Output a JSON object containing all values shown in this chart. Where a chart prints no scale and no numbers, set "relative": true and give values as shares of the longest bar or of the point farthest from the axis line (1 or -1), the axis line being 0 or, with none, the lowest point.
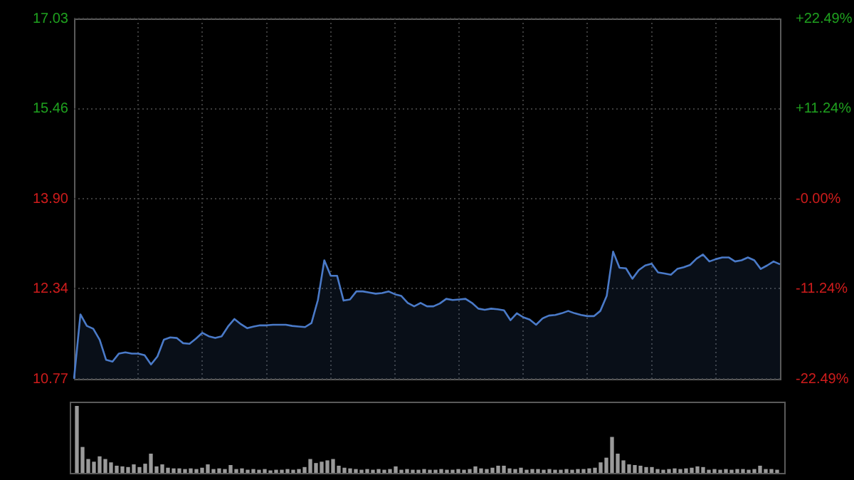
{
  "chart_data": [
    {
      "type": "area",
      "tick_labels": "y",
      "grid": true,
      "legend": false,
      "categories": [
        null,
        null,
        null,
        null,
        null,
        null,
        null,
        null,
        null,
        null,
        null,
        null,
        null,
        null,
        null,
        null,
        null,
        null,
        null,
        null,
        null,
        null,
        null,
        null,
        null,
        null,
        null,
        null,
        null,
        null,
        null,
        null,
        null,
        null,
        null,
        null,
        null,
        null,
        null,
        null,
        null,
        null,
        null,
        null,
        null,
        null,
        null,
        null,
        null,
        null,
        null,
        null,
        null,
        null,
        null,
        null,
        null,
        null,
        null,
        null,
        null,
        null,
        null,
        null,
        null,
        null,
        null,
        null,
        null,
        null,
        null,
        null,
        null,
        null,
        null,
        null,
        null,
        null,
        null,
        null,
        null,
        null,
        null,
        null,
        null,
        null,
        null,
        null,
        null,
        null,
        null,
        null,
        null,
        null,
        null,
        null,
        null,
        null,
        null,
        null,
        null,
        null,
        null,
        null,
        null,
        null,
        null,
        null,
        null,
        null,
        null
      ],
      "ylim": [
        10.77,
        17.03
      ],
      "yticks": [
        10.77,
        12.34,
        {
          "value": 13.9,
          "label": "13.90"
        },
        15.46,
        17.03
      ],
      "y2lim": [
        -22.49,
        22.49
      ],
      "y2ticks": [
        {
          "value": -22.49,
          "label": "-22.49%"
        },
        {
          "value": -11.24,
          "label": "-11.24%"
        },
        {
          "value": 0,
          "label": "-0.00%"
        },
        {
          "value": 11.24,
          "label": "+11.24%"
        },
        {
          "value": 22.49,
          "label": "+22.49%"
        }
      ],
      "series": [
        {
          "color": "#4a7ac8",
          "values": [
            10.77,
            11.89,
            11.69,
            11.64,
            11.45,
            11.1,
            11.07,
            11.21,
            11.23,
            11.21,
            11.21,
            11.18,
            11.02,
            11.16,
            11.45,
            11.49,
            11.48,
            11.39,
            11.38,
            11.47,
            11.57,
            11.51,
            11.48,
            11.51,
            11.68,
            11.81,
            11.72,
            11.65,
            11.68,
            11.7,
            11.7,
            11.71,
            11.71,
            11.71,
            11.69,
            11.68,
            11.67,
            11.74,
            12.14,
            12.83,
            12.56,
            12.56,
            12.13,
            12.15,
            12.29,
            12.29,
            12.27,
            12.25,
            12.26,
            12.29,
            12.24,
            12.21,
            12.09,
            12.03,
            12.09,
            12.03,
            12.03,
            12.08,
            12.16,
            12.14,
            12.15,
            12.16,
            12.09,
            11.99,
            11.97,
            11.99,
            11.98,
            11.96,
            11.79,
            11.91,
            11.84,
            11.8,
            11.71,
            11.82,
            11.87,
            11.88,
            11.91,
            11.95,
            11.91,
            11.88,
            11.86,
            11.86,
            11.95,
            12.21,
            12.98,
            12.7,
            12.69,
            12.51,
            12.66,
            12.74,
            12.77,
            12.62,
            12.6,
            12.58,
            12.68,
            12.71,
            12.75,
            12.86,
            12.93,
            12.81,
            12.85,
            12.88,
            12.88,
            12.81,
            12.83,
            12.88,
            12.83,
            12.68,
            12.74,
            12.81,
            12.76
          ]
        }
      ]
    },
    {
      "type": "bar",
      "relative": true,
      "legend": false,
      "tick_labels": false,
      "categories": [
        null,
        null,
        null,
        null,
        null,
        null,
        null,
        null,
        null,
        null,
        null,
        null,
        null,
        null,
        null,
        null,
        null,
        null,
        null,
        null,
        null,
        null,
        null,
        null,
        null,
        null,
        null,
        null,
        null,
        null,
        null,
        null,
        null,
        null,
        null,
        null,
        null,
        null,
        null,
        null,
        null,
        null,
        null,
        null,
        null,
        null,
        null,
        null,
        null,
        null,
        null,
        null,
        null,
        null,
        null,
        null,
        null,
        null,
        null,
        null,
        null,
        null,
        null,
        null,
        null,
        null,
        null,
        null,
        null,
        null,
        null,
        null,
        null,
        null,
        null,
        null,
        null,
        null,
        null,
        null,
        null,
        null,
        null,
        null,
        null,
        null,
        null,
        null,
        null,
        null,
        null,
        null,
        null,
        null,
        null,
        null,
        null,
        null,
        null,
        null,
        null,
        null,
        null,
        null,
        null,
        null,
        null,
        null,
        null,
        null,
        null,
        null,
        null,
        null,
        null,
        null,
        null,
        null,
        null,
        null,
        null,
        null,
        null,
        null
      ],
      "series": [
        {
          "color": "#9a9a9a",
          "values": [
            1,
            0.38,
            0.2,
            0.16,
            0.24,
            0.2,
            0.15,
            0.1,
            0.09,
            0.08,
            0.12,
            0.08,
            0.13,
            0.28,
            0.09,
            0.12,
            0.07,
            0.06,
            0.06,
            0.05,
            0.06,
            0.05,
            0.07,
            0.12,
            0.05,
            0.06,
            0.05,
            0.11,
            0.05,
            0.06,
            0.04,
            0.05,
            0.04,
            0.05,
            0.03,
            0.04,
            0.04,
            0.05,
            0.04,
            0.05,
            0.08,
            0.2,
            0.14,
            0.16,
            0.18,
            0.2,
            0.1,
            0.07,
            0.06,
            0.05,
            0.04,
            0.05,
            0.04,
            0.05,
            0.04,
            0.05,
            0.09,
            0.04,
            0.05,
            0.04,
            0.04,
            0.05,
            0.04,
            0.04,
            0.05,
            0.04,
            0.04,
            0.05,
            0.04,
            0.05,
            0.09,
            0.06,
            0.05,
            0.07,
            0.1,
            0.1,
            0.06,
            0.05,
            0.07,
            0.04,
            0.05,
            0.05,
            0.04,
            0.05,
            0.04,
            0.04,
            0.05,
            0.04,
            0.05,
            0.05,
            0.06,
            0.07,
            0.15,
            0.22,
            0.53,
            0.28,
            0.18,
            0.12,
            0.11,
            0.1,
            0.08,
            0.08,
            0.05,
            0.04,
            0.05,
            0.06,
            0.05,
            0.06,
            0.07,
            0.09,
            0.08,
            0.04,
            0.05,
            0.04,
            0.05,
            0.04,
            0.05,
            0.05,
            0.04,
            0.05,
            0.1,
            0.05,
            0.05,
            0.04
          ]
        }
      ]
    }
  ]
}
